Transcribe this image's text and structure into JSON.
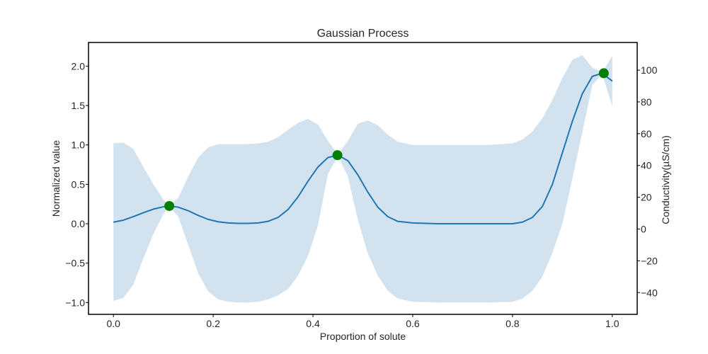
{
  "chart_data": {
    "type": "line",
    "title": "Gaussian Process",
    "xlabel": "Proportion of solute",
    "ylabel": "Normalized value",
    "ylabel_right": "Conductivity(µS/cm)",
    "xlim": [
      -0.05,
      1.05
    ],
    "ylim": [
      -1.15,
      2.3
    ],
    "y2lim": [
      -53.7,
      117.4
    ],
    "x_ticks": [
      "0.0",
      "0.2",
      "0.4",
      "0.6",
      "0.8",
      "1.0"
    ],
    "y_ticks": [
      "−1.0",
      "−0.5",
      "0.0",
      "0.5",
      "1.0",
      "1.5",
      "2.0"
    ],
    "y2_ticks": [
      "−40",
      "−20",
      "0",
      "20",
      "40",
      "60",
      "80",
      "100"
    ],
    "grid": false,
    "colors": {
      "mean_line": "#1f77b4",
      "band": "#d2e3ef",
      "observation": "#008000"
    },
    "series": [
      {
        "kind": "mean",
        "x": [
          0.0,
          0.02,
          0.04,
          0.06,
          0.08,
          0.1,
          0.112,
          0.13,
          0.15,
          0.17,
          0.19,
          0.21,
          0.23,
          0.25,
          0.27,
          0.29,
          0.31,
          0.33,
          0.35,
          0.37,
          0.39,
          0.41,
          0.43,
          0.45,
          0.47,
          0.49,
          0.51,
          0.53,
          0.55,
          0.57,
          0.6,
          0.65,
          0.7,
          0.75,
          0.8,
          0.82,
          0.84,
          0.86,
          0.88,
          0.9,
          0.92,
          0.94,
          0.96,
          0.98,
          1.0
        ],
        "y": [
          0.02,
          0.045,
          0.09,
          0.14,
          0.185,
          0.215,
          0.225,
          0.21,
          0.165,
          0.105,
          0.055,
          0.025,
          0.01,
          0.005,
          0.005,
          0.01,
          0.03,
          0.08,
          0.18,
          0.34,
          0.54,
          0.72,
          0.84,
          0.87,
          0.8,
          0.62,
          0.4,
          0.21,
          0.09,
          0.03,
          0.01,
          0.0,
          0.0,
          0.0,
          0.0,
          0.02,
          0.08,
          0.22,
          0.5,
          0.9,
          1.3,
          1.65,
          1.87,
          1.91,
          1.81
        ]
      },
      {
        "kind": "upper",
        "x": [
          0.0,
          0.02,
          0.04,
          0.06,
          0.08,
          0.1,
          0.112,
          0.13,
          0.15,
          0.17,
          0.19,
          0.21,
          0.23,
          0.25,
          0.27,
          0.29,
          0.31,
          0.33,
          0.35,
          0.37,
          0.39,
          0.41,
          0.43,
          0.45,
          0.47,
          0.49,
          0.51,
          0.53,
          0.55,
          0.57,
          0.6,
          0.65,
          0.7,
          0.75,
          0.8,
          0.82,
          0.84,
          0.86,
          0.88,
          0.9,
          0.92,
          0.94,
          0.96,
          0.98,
          1.0
        ],
        "y": [
          1.02,
          1.03,
          0.95,
          0.72,
          0.5,
          0.31,
          0.23,
          0.33,
          0.6,
          0.84,
          0.97,
          1.01,
          1.01,
          1.01,
          1.01,
          1.02,
          1.04,
          1.1,
          1.19,
          1.28,
          1.33,
          1.26,
          1.05,
          0.88,
          1.05,
          1.27,
          1.31,
          1.25,
          1.13,
          1.04,
          1.0,
          1.0,
          1.0,
          1.0,
          1.02,
          1.07,
          1.17,
          1.34,
          1.57,
          1.85,
          2.08,
          2.14,
          1.98,
          1.92,
          2.13
        ]
      },
      {
        "kind": "lower",
        "x": [
          0.0,
          0.02,
          0.04,
          0.06,
          0.08,
          0.1,
          0.112,
          0.13,
          0.15,
          0.17,
          0.19,
          0.21,
          0.23,
          0.25,
          0.27,
          0.29,
          0.31,
          0.33,
          0.35,
          0.37,
          0.39,
          0.41,
          0.43,
          0.45,
          0.47,
          0.49,
          0.51,
          0.53,
          0.55,
          0.57,
          0.6,
          0.65,
          0.7,
          0.75,
          0.8,
          0.82,
          0.84,
          0.86,
          0.88,
          0.9,
          0.92,
          0.94,
          0.96,
          0.98,
          1.0
        ],
        "y": [
          -0.98,
          -0.94,
          -0.77,
          -0.44,
          -0.13,
          0.12,
          0.22,
          0.09,
          -0.27,
          -0.63,
          -0.86,
          -0.96,
          -0.99,
          -1.0,
          -1.0,
          -0.99,
          -0.96,
          -0.91,
          -0.83,
          -0.66,
          -0.41,
          -0.02,
          0.63,
          0.86,
          0.6,
          0.05,
          -0.38,
          -0.66,
          -0.85,
          -0.95,
          -0.99,
          -1.0,
          -1.0,
          -1.0,
          -0.99,
          -0.95,
          -0.85,
          -0.67,
          -0.37,
          0.0,
          0.57,
          1.16,
          1.76,
          1.9,
          1.49
        ]
      }
    ],
    "observations": [
      {
        "x": 0.112,
        "y": 0.225
      },
      {
        "x": 0.449,
        "y": 0.87
      },
      {
        "x": 0.983,
        "y": 1.91
      }
    ]
  }
}
